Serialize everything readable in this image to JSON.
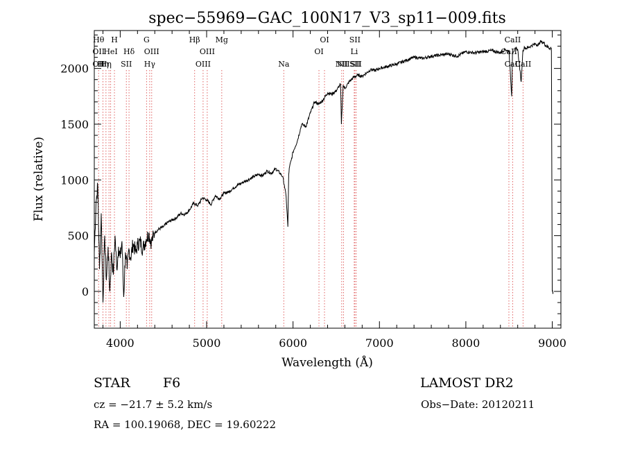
{
  "chart_data": {
    "type": "line",
    "title": "spec−55969−GAC_100N17_V3_sp11−009.fits",
    "xlabel": "Wavelength (Å)",
    "ylabel": "Flux (relative)",
    "xlim": [
      3700,
      9100
    ],
    "ylim": [
      -330,
      2340
    ],
    "x_ticks": [
      4000,
      5000,
      6000,
      7000,
      8000,
      9000
    ],
    "y_ticks": [
      0,
      500,
      1000,
      1500,
      2000
    ],
    "grid": false,
    "series": [
      {
        "x": [
          3700,
          3720,
          3740,
          3760,
          3780,
          3800,
          3820,
          3840,
          3860,
          3880,
          3900,
          3920,
          3940,
          3960,
          3980,
          4000,
          4020,
          4040,
          4060,
          4080,
          4100,
          4120,
          4150,
          4180,
          4200,
          4230,
          4260,
          4300,
          4330,
          4360,
          4400,
          4450,
          4500,
          4550,
          4600,
          4650,
          4700,
          4750,
          4800,
          4850,
          4900,
          4950,
          5000,
          5050,
          5100,
          5150,
          5200,
          5250,
          5300,
          5350,
          5400,
          5450,
          5500,
          5550,
          5600,
          5650,
          5700,
          5750,
          5800,
          5850,
          5880,
          5900,
          5920,
          5940,
          5950,
          5960,
          5980,
          6000,
          6050,
          6100,
          6150,
          6200,
          6250,
          6300,
          6350,
          6400,
          6450,
          6500,
          6550,
          6560,
          6580,
          6600,
          6650,
          6700,
          6750,
          6800,
          6850,
          6900,
          6950,
          7000,
          7100,
          7200,
          7300,
          7400,
          7500,
          7600,
          7700,
          7800,
          7900,
          8000,
          8100,
          8200,
          8300,
          8400,
          8450,
          8500,
          8530,
          8540,
          8560,
          8580,
          8600,
          8640,
          8660,
          8680,
          8700,
          8750,
          8800,
          8840,
          8860,
          8900,
          8950,
          8990,
          9000,
          9010
        ],
        "y": [
          350,
          800,
          950,
          200,
          700,
          -100,
          500,
          100,
          400,
          0,
          350,
          150,
          500,
          200,
          400,
          300,
          450,
          -50,
          350,
          200,
          380,
          300,
          430,
          350,
          420,
          450,
          380,
          470,
          520,
          440,
          530,
          560,
          580,
          620,
          640,
          660,
          700,
          690,
          730,
          790,
          770,
          840,
          820,
          780,
          860,
          830,
          880,
          890,
          920,
          950,
          970,
          990,
          1010,
          1030,
          1050,
          1040,
          1080,
          1060,
          1100,
          1060,
          1030,
          950,
          850,
          580,
          1050,
          1120,
          1180,
          1250,
          1350,
          1500,
          1480,
          1600,
          1700,
          1680,
          1720,
          1780,
          1770,
          1800,
          1860,
          1500,
          1850,
          1820,
          1880,
          1920,
          1940,
          1930,
          1960,
          1990,
          1980,
          2000,
          2020,
          2040,
          2070,
          2100,
          2090,
          2110,
          2120,
          2130,
          2110,
          2150,
          2140,
          2150,
          2160,
          2140,
          2170,
          2150,
          1750,
          2150,
          2160,
          2180,
          2170,
          1880,
          2160,
          2190,
          2180,
          2200,
          2220,
          2210,
          2240,
          2230,
          2190,
          2180,
          0,
          -10
        ]
      }
    ],
    "line_annotations": [
      {
        "wl": 3750,
        "labels": [
          "Hθ",
          "OII",
          "OII"
        ]
      },
      {
        "wl": 3800,
        "labels": [
          "",
          "",
          "Hη"
        ]
      },
      {
        "wl": 3835,
        "labels": [
          "",
          "",
          "Hη"
        ]
      },
      {
        "wl": 3870,
        "labels": [
          "",
          "",
          ""
        ]
      },
      {
        "wl": 3889,
        "labels": [
          "",
          "HeI",
          ""
        ]
      },
      {
        "wl": 3933,
        "labels": [
          "H",
          "",
          ""
        ]
      },
      {
        "wl": 4071,
        "labels": [
          "",
          "",
          "SII"
        ]
      },
      {
        "wl": 4102,
        "labels": [
          "",
          "Hδ",
          ""
        ]
      },
      {
        "wl": 4305,
        "labels": [
          "G",
          "",
          ""
        ]
      },
      {
        "wl": 4341,
        "labels": [
          "",
          "",
          "Hγ"
        ]
      },
      {
        "wl": 4364,
        "labels": [
          "",
          "OIII",
          ""
        ]
      },
      {
        "wl": 4861,
        "labels": [
          "Hβ",
          "",
          ""
        ]
      },
      {
        "wl": 4959,
        "labels": [
          "",
          "",
          "OIII"
        ]
      },
      {
        "wl": 5007,
        "labels": [
          "",
          "OIII",
          ""
        ]
      },
      {
        "wl": 5175,
        "labels": [
          "Mg",
          "",
          ""
        ]
      },
      {
        "wl": 5893,
        "labels": [
          "",
          "",
          "Na"
        ]
      },
      {
        "wl": 6300,
        "labels": [
          "",
          "OI",
          ""
        ]
      },
      {
        "wl": 6364,
        "labels": [
          "OI",
          "",
          ""
        ]
      },
      {
        "wl": 6563,
        "labels": [
          "",
          "",
          "NII"
        ]
      },
      {
        "wl": 6584,
        "labels": [
          "",
          "",
          "NII"
        ]
      },
      {
        "wl": 6708,
        "labels": [
          "",
          "Li",
          ""
        ]
      },
      {
        "wl": 6716,
        "labels": [
          "SII",
          "",
          "SII"
        ]
      },
      {
        "wl": 6731,
        "labels": [
          "",
          "",
          "SII"
        ]
      },
      {
        "wl": 8498,
        "labels": [
          "",
          "CaII",
          ""
        ]
      },
      {
        "wl": 8542,
        "labels": [
          "CaII",
          "",
          "CaII"
        ]
      },
      {
        "wl": 8662,
        "labels": [
          "",
          "",
          "CaII"
        ]
      }
    ],
    "colors": {
      "line": "#000000",
      "annotation": "#e06060",
      "axes": "#000000"
    }
  },
  "info": {
    "class_label": "STAR",
    "subclass": "F6",
    "survey": "LAMOST DR2",
    "cz": "cz = −21.7 ± 5.2 km/s",
    "obs_date": "Obs−Date: 20120211",
    "coords": "RA = 100.19068, DEC =  19.60222"
  }
}
